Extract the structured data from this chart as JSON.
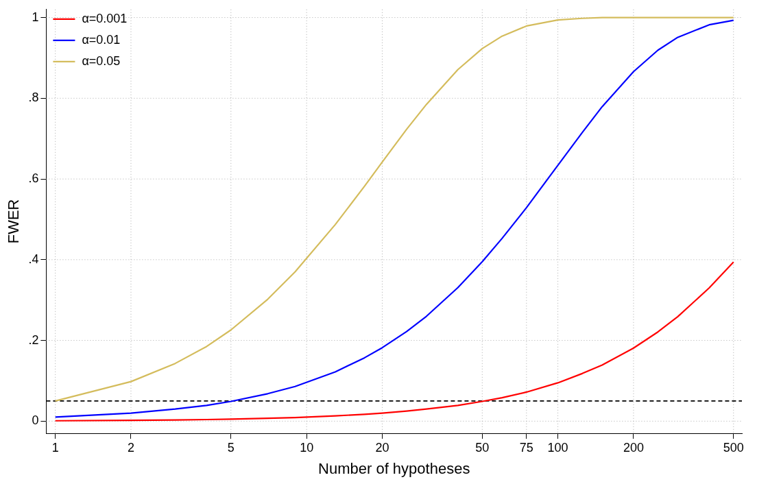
{
  "chart_data": {
    "type": "line",
    "xlabel": "Number of hypotheses",
    "ylabel": "FWER",
    "x": [
      1,
      2,
      3,
      4,
      5,
      7,
      9,
      13,
      17,
      20,
      25,
      30,
      40,
      50,
      60,
      75,
      100,
      125,
      150,
      200,
      250,
      300,
      400,
      500
    ],
    "series": [
      {
        "name": "α=0.001",
        "color": "#ff0000",
        "values": [
          0.001,
          0.002,
          0.003,
          0.004,
          0.005,
          0.007,
          0.009,
          0.013,
          0.017,
          0.02,
          0.025,
          0.03,
          0.039,
          0.049,
          0.058,
          0.072,
          0.095,
          0.118,
          0.139,
          0.181,
          0.221,
          0.259,
          0.33,
          0.394
        ]
      },
      {
        "name": "α=0.01",
        "color": "#0000ff",
        "values": [
          0.01,
          0.02,
          0.03,
          0.039,
          0.049,
          0.068,
          0.086,
          0.122,
          0.157,
          0.182,
          0.222,
          0.26,
          0.331,
          0.395,
          0.453,
          0.529,
          0.634,
          0.715,
          0.779,
          0.866,
          0.919,
          0.951,
          0.982,
          0.993
        ]
      },
      {
        "name": "α=0.05",
        "color": "#d4bc5c",
        "values": [
          0.05,
          0.098,
          0.143,
          0.185,
          0.226,
          0.302,
          0.37,
          0.487,
          0.582,
          0.642,
          0.723,
          0.785,
          0.871,
          0.923,
          0.954,
          0.979,
          0.994,
          0.998,
          1.0,
          1.0,
          1.0,
          1.0,
          1.0,
          1.0
        ]
      }
    ],
    "log": "x",
    "xlim": [
      0.92,
      540
    ],
    "xticks": [
      1,
      2,
      5,
      10,
      20,
      50,
      75,
      100,
      200,
      500
    ],
    "ylim": [
      -0.03,
      1.02
    ],
    "yticks": [
      0,
      {
        "value": 0.2,
        "label": ".2"
      },
      {
        "value": 0.4,
        "label": ".4"
      },
      {
        "value": 0.6,
        "label": ".6"
      },
      {
        "value": 0.8,
        "label": ".8"
      },
      1
    ],
    "grid": true,
    "legend": "top left",
    "marker": "none",
    "line_style": "solid",
    "ref_lines": [
      {
        "axis": "y",
        "value": 0.05,
        "color": "#000000",
        "line_style": "dashed"
      }
    ]
  }
}
